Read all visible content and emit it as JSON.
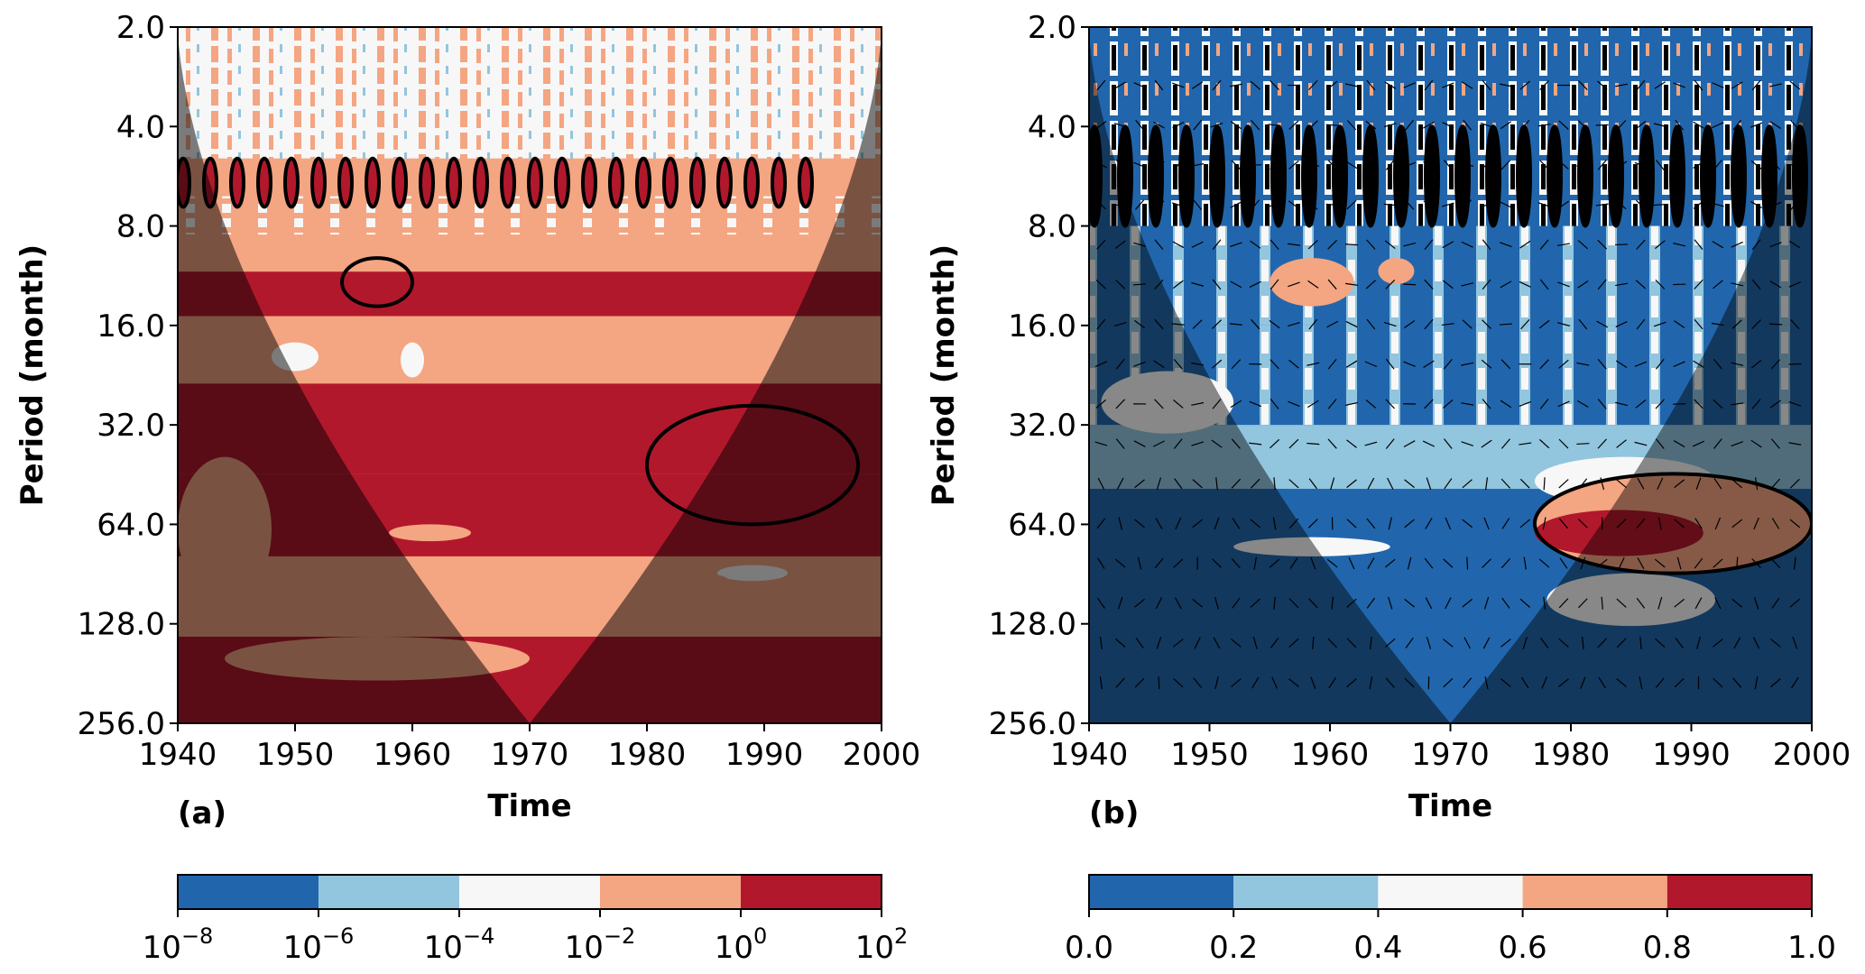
{
  "chart_data": [
    {
      "type": "heatmap",
      "panel_label": "(a)",
      "title": "",
      "xlabel": "Time",
      "ylabel": "Period (month)",
      "x_ticks": [
        1940,
        1950,
        1960,
        1970,
        1980,
        1990,
        2000
      ],
      "x_tick_labels": [
        "1940",
        "1950",
        "1960",
        "1970",
        "1980",
        "1990",
        "2000"
      ],
      "xlim": [
        1940,
        2000
      ],
      "y_ticks": [
        2,
        4,
        8,
        16,
        32,
        64,
        128,
        256
      ],
      "y_tick_labels": [
        "2.0",
        "4.0",
        "8.0",
        "16.0",
        "32.0",
        "64.0",
        "128.0",
        "256.0"
      ],
      "ylim": [
        2,
        256
      ],
      "y_scale": "log2",
      "y_inverted": true,
      "cone_of_influence": true,
      "colorbar": {
        "scale": "log10",
        "tick_bases": [
          "10",
          "10",
          "10",
          "10",
          "10",
          "10"
        ],
        "tick_exponents": [
          "−8",
          "−6",
          "−4",
          "−2",
          "0",
          "2"
        ],
        "levels": [
          1e-08,
          1e-06,
          0.0001,
          0.01,
          1,
          100
        ],
        "colors": [
          "#2166ac",
          "#92c5de",
          "#f7f7f7",
          "#f4a582",
          "#b2182b"
        ]
      },
      "bands": [
        {
          "period_range": [
            2,
            5
          ],
          "level_index": 2
        },
        {
          "period_range": [
            5,
            6.5
          ],
          "level_index": 3
        },
        {
          "period_range": [
            6.5,
            8.5
          ],
          "level_index": 3
        },
        {
          "period_range": [
            8.5,
            11
          ],
          "level_index": 3
        },
        {
          "period_range": [
            11,
            15
          ],
          "level_index": 4
        },
        {
          "period_range": [
            15,
            24
          ],
          "level_index": 3
        },
        {
          "period_range": [
            24,
            45
          ],
          "level_index": 4
        },
        {
          "period_range": [
            45,
            80
          ],
          "level_index": 4
        },
        {
          "period_range": [
            80,
            140
          ],
          "level_index": 3
        },
        {
          "period_range": [
            140,
            256
          ],
          "level_index": 4
        }
      ],
      "significant_regions": [
        {
          "time_range": [
            1980,
            1998
          ],
          "period_range": [
            28,
            64
          ]
        },
        {
          "time_range": [
            1954,
            1960
          ],
          "period_range": [
            10,
            14
          ]
        },
        {
          "time_range": [
            1940,
            1995
          ],
          "period_range": [
            5,
            7
          ]
        }
      ]
    },
    {
      "type": "heatmap",
      "panel_label": "(b)",
      "title": "",
      "xlabel": "Time",
      "ylabel": "Period (month)",
      "x_ticks": [
        1940,
        1950,
        1960,
        1970,
        1980,
        1990,
        2000
      ],
      "x_tick_labels": [
        "1940",
        "1950",
        "1960",
        "1970",
        "1980",
        "1990",
        "2000"
      ],
      "xlim": [
        1940,
        2000
      ],
      "y_ticks": [
        2,
        4,
        8,
        16,
        32,
        64,
        128,
        256
      ],
      "y_tick_labels": [
        "2.0",
        "4.0",
        "8.0",
        "16.0",
        "32.0",
        "64.0",
        "128.0",
        "256.0"
      ],
      "ylim": [
        2,
        256
      ],
      "y_scale": "log2",
      "y_inverted": true,
      "cone_of_influence": true,
      "phase_arrows": true,
      "colorbar": {
        "scale": "linear",
        "tick_labels": [
          "0.0",
          "0.2",
          "0.4",
          "0.6",
          "0.8",
          "1.0"
        ],
        "levels": [
          0.0,
          0.2,
          0.4,
          0.6,
          0.8,
          1.0
        ],
        "colors": [
          "#2166ac",
          "#92c5de",
          "#f7f7f7",
          "#f4a582",
          "#b2182b"
        ]
      },
      "bands": [
        {
          "period_range": [
            2,
            4
          ],
          "level_index": 0
        },
        {
          "period_range": [
            4,
            8
          ],
          "level_index": 0
        },
        {
          "period_range": [
            8,
            16
          ],
          "level_index": 1
        },
        {
          "period_range": [
            16,
            32
          ],
          "level_index": 1
        },
        {
          "period_range": [
            32,
            50
          ],
          "level_index": 1
        },
        {
          "period_range": [
            50,
            90
          ],
          "level_index": 0
        },
        {
          "period_range": [
            90,
            256
          ],
          "level_index": 0
        }
      ],
      "significant_regions": [
        {
          "time_range": [
            1977,
            2000
          ],
          "period_range": [
            45,
            90
          ]
        },
        {
          "time_range": [
            1940,
            2000
          ],
          "period_range": [
            4,
            8
          ]
        }
      ]
    }
  ]
}
